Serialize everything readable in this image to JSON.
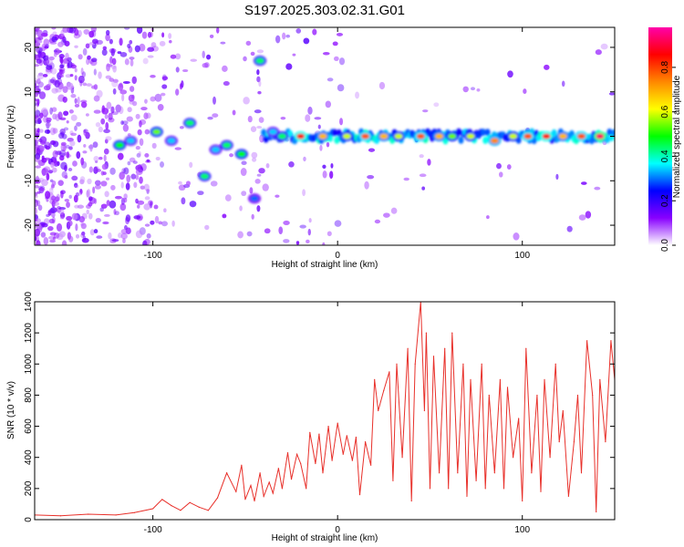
{
  "title": "S197.2025.303.02.31.G01",
  "spectrogram": {
    "type": "heatmap",
    "xlabel": "Height of straight line (km)",
    "ylabel": "Frequency (Hz)",
    "xlim": [
      -164,
      150
    ],
    "ylim": [
      -24.5,
      24.5
    ],
    "xticks": [
      -100,
      0,
      100
    ],
    "xtick_labels": [
      "-100",
      "0",
      "100"
    ],
    "yticks": [
      20,
      10,
      0,
      -10,
      -20
    ],
    "ytick_labels": [
      "20",
      "10",
      "0",
      "-10",
      "-20"
    ],
    "colorbar": {
      "label": "Normalized spectral amplitude",
      "range": [
        0,
        0.98
      ],
      "ticks": [
        0.0,
        0.2,
        0.4,
        0.6,
        0.8
      ],
      "tick_labels": [
        "0.0",
        "0.2",
        "0.4",
        "0.6",
        "0.8"
      ],
      "colormap": [
        "#ffffff",
        "#8800ff",
        "#0000ff",
        "#00ffff",
        "#00ff00",
        "#ffff00",
        "#ff8800",
        "#ff0000",
        "#ff00aa"
      ]
    },
    "features": [
      {
        "x": -118,
        "y": -2,
        "v": 0.5
      },
      {
        "x": -112,
        "y": -1,
        "v": 0.35
      },
      {
        "x": -98,
        "y": 1,
        "v": 0.55
      },
      {
        "x": -90,
        "y": -1,
        "v": 0.35
      },
      {
        "x": -80,
        "y": 3,
        "v": 0.45
      },
      {
        "x": -72,
        "y": -9,
        "v": 0.45
      },
      {
        "x": -66,
        "y": -3,
        "v": 0.35
      },
      {
        "x": -60,
        "y": -2,
        "v": 0.45
      },
      {
        "x": -52,
        "y": -4,
        "v": 0.5
      },
      {
        "x": -45,
        "y": -14,
        "v": 0.3
      },
      {
        "x": -42,
        "y": 17,
        "v": 0.45
      },
      {
        "x": -35,
        "y": 1,
        "v": 0.35
      },
      {
        "x": -30,
        "y": 0,
        "v": 0.45
      },
      {
        "x": -20,
        "y": 0,
        "v": 0.85
      },
      {
        "x": -8,
        "y": 0,
        "v": 0.7
      },
      {
        "x": 5,
        "y": 0,
        "v": 0.6
      },
      {
        "x": 15,
        "y": 0,
        "v": 0.8
      },
      {
        "x": 25,
        "y": 0,
        "v": 0.7
      },
      {
        "x": 33,
        "y": 0,
        "v": 0.6
      },
      {
        "x": 45,
        "y": 0,
        "v": 0.8
      },
      {
        "x": 55,
        "y": 0,
        "v": 0.7
      },
      {
        "x": 62,
        "y": 0,
        "v": 0.55
      },
      {
        "x": 72,
        "y": 0,
        "v": 0.6
      },
      {
        "x": 85,
        "y": -1,
        "v": 0.75
      },
      {
        "x": 95,
        "y": 0,
        "v": 0.6
      },
      {
        "x": 103,
        "y": 0,
        "v": 0.8
      },
      {
        "x": 113,
        "y": 0,
        "v": 0.85
      },
      {
        "x": 122,
        "y": 0,
        "v": 0.7
      },
      {
        "x": 132,
        "y": 0,
        "v": 0.8
      },
      {
        "x": 142,
        "y": 0,
        "v": 0.95
      }
    ]
  },
  "snr": {
    "type": "line",
    "xlabel": "Height of straight line (km)",
    "ylabel": "SNR (10 * v/v)",
    "xlim": [
      -164,
      150
    ],
    "ylim": [
      0,
      1400
    ],
    "xticks": [
      -100,
      0,
      100
    ],
    "xtick_labels": [
      "-100",
      "0",
      "100"
    ],
    "yticks": [
      0,
      200,
      400,
      600,
      800,
      1000,
      1200,
      1400
    ],
    "ytick_labels": [
      "0",
      "200",
      "400",
      "600",
      "800",
      "1000",
      "1200",
      "1400"
    ],
    "color": "#e8302a",
    "x": [
      -164,
      -150,
      -135,
      -120,
      -110,
      -100,
      -95,
      -90,
      -85,
      -80,
      -75,
      -70,
      -65,
      -60,
      -55,
      -52,
      -50,
      -47,
      -45,
      -42,
      -40,
      -37,
      -35,
      -32,
      -30,
      -27,
      -25,
      -22,
      -20,
      -17,
      -15,
      -12,
      -10,
      -8,
      -5,
      -3,
      0,
      3,
      5,
      8,
      10,
      12,
      15,
      18,
      20,
      22,
      25,
      28,
      30,
      32,
      35,
      38,
      40,
      42,
      45,
      47,
      48,
      50,
      52,
      55,
      58,
      60,
      62,
      65,
      68,
      70,
      72,
      75,
      78,
      80,
      82,
      85,
      88,
      90,
      92,
      95,
      98,
      100,
      102,
      105,
      108,
      110,
      112,
      115,
      118,
      120,
      122,
      125,
      128,
      130,
      132,
      135,
      138,
      140,
      142,
      145,
      148,
      150
    ],
    "values": [
      30,
      25,
      35,
      30,
      45,
      70,
      130,
      90,
      60,
      110,
      80,
      60,
      140,
      300,
      180,
      350,
      130,
      220,
      120,
      300,
      150,
      240,
      170,
      330,
      200,
      430,
      260,
      420,
      360,
      200,
      560,
      360,
      550,
      300,
      600,
      380,
      620,
      420,
      540,
      380,
      530,
      160,
      500,
      350,
      900,
      700,
      830,
      950,
      250,
      1000,
      400,
      1100,
      120,
      1000,
      1400,
      700,
      1200,
      200,
      1050,
      300,
      1100,
      200,
      1200,
      300,
      1000,
      150,
      900,
      250,
      1000,
      200,
      800,
      300,
      900,
      200,
      850,
      400,
      650,
      120,
      1100,
      300,
      800,
      180,
      900,
      400,
      1000,
      500,
      700,
      150,
      500,
      800,
      300,
      1150,
      800,
      50,
      900,
      500,
      1150,
      900
    ]
  }
}
